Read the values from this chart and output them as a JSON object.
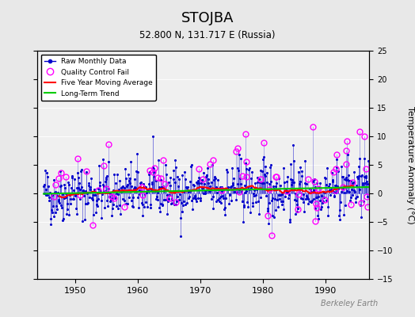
{
  "title": "STOJBA",
  "subtitle": "52.800 N, 131.717 E (Russia)",
  "ylabel": "Temperature Anomaly (°C)",
  "credit": "Berkeley Earth",
  "ylim": [
    -15,
    25
  ],
  "yticks": [
    -15,
    -10,
    -5,
    0,
    5,
    10,
    15,
    20,
    25
  ],
  "xlim": [
    1944,
    1997
  ],
  "xticks": [
    1950,
    1960,
    1970,
    1980,
    1990
  ],
  "start_year": 1945,
  "end_year": 1996,
  "bg_color": "#e8e8e8",
  "plot_bg_color": "#f0f0f0",
  "raw_color": "#0000cc",
  "qc_color": "#ff00ff",
  "moving_avg_color": "#ff0000",
  "trend_color": "#00cc00",
  "seed": 42
}
